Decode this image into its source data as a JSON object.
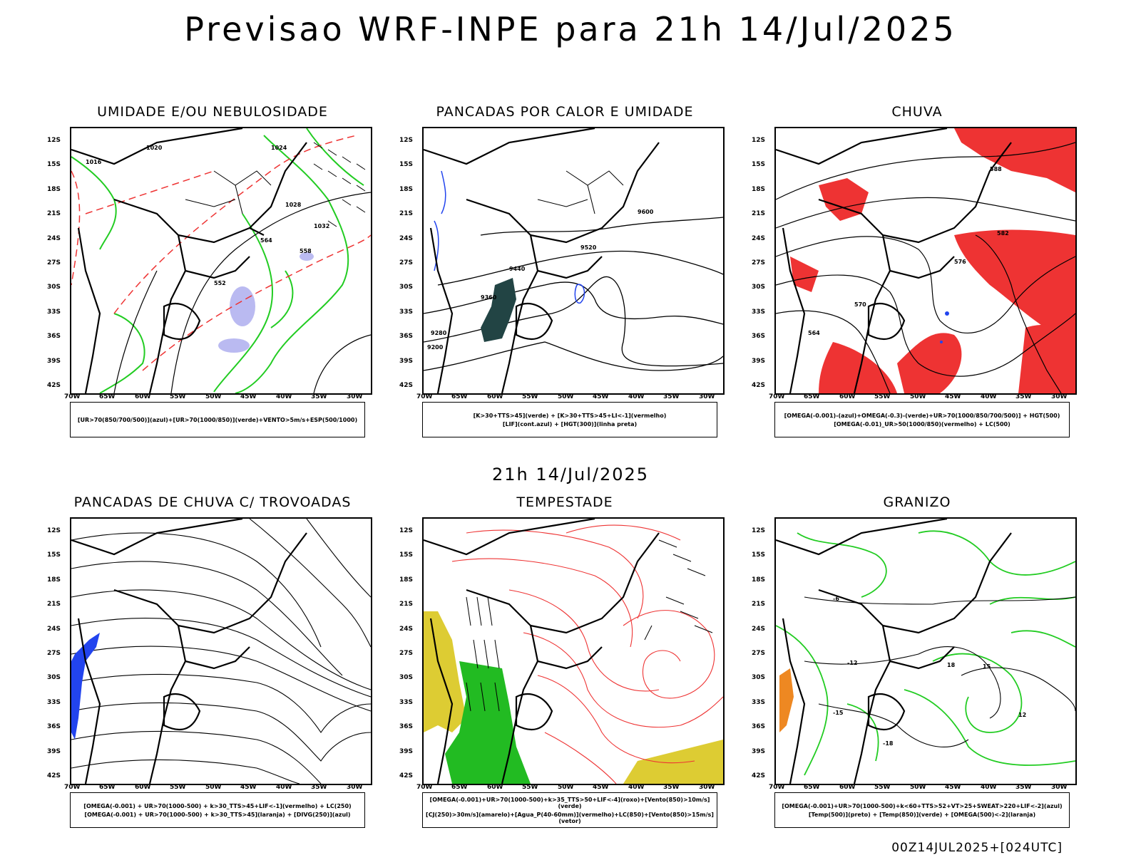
{
  "main_title": "Previsao WRF-INPE  para 21h 14/Jul/2025",
  "mid_title": "21h 14/Jul/2025",
  "footer": "00Z14JUL2025+[024UTC]",
  "lat_labels": [
    "12S",
    "15S",
    "18S",
    "21S",
    "24S",
    "27S",
    "30S",
    "33S",
    "36S",
    "39S",
    "42S"
  ],
  "lon_labels": [
    "70W",
    "65W",
    "60W",
    "55W",
    "50W",
    "45W",
    "40W",
    "35W",
    "30W"
  ],
  "colors": {
    "green": "#22cc22",
    "red": "#ee3333",
    "blue": "#2244ee",
    "lavender": "#aaaaee",
    "teal": "#224444",
    "yellow": "#ddcc33",
    "orange": "#ee8822"
  },
  "panels": [
    {
      "title": "UMIDADE E/OU NEBULOSIDADE",
      "legend": [
        "[UR>70(850/700/500)](azul)+[UR>70(1000/850)](verde)+VENTO>5m/s+ESP(500/1000)"
      ]
    },
    {
      "title": "PANCADAS POR CALOR E UMIDADE",
      "legend": [
        "[K>30+TTS>45](verde) + [K>30+TTS>45+LI<-1](vermelho)",
        "[LIF](cont.azul) + [HGT(300)](linha preta)"
      ]
    },
    {
      "title": "CHUVA",
      "legend": [
        "[OMEGA(-0.001)-(azul)+OMEGA(-0.3)-(verde)+UR>70(1000/850/700/500)] + HGT(500)",
        "[OMEGA(-0.01)_UR>50(1000/850)(vermelho) + LC(500)"
      ]
    },
    {
      "title": "PANCADAS DE CHUVA C/ TROVOADAS",
      "legend": [
        "[OMEGA(-0.001) + UR>70(1000-500) + k>30_TTS>45+LIF<-1](vermelho) + LC(250)",
        "[OMEGA(-0.001) + UR>70(1000-500) + k>30_TTS>45](laranja) + [DIVG(250)](azul)"
      ]
    },
    {
      "title": "TEMPESTADE",
      "legend": [
        "[OMEGA(-0.001)+UR>70(1000-500)+k>35_TTS>50+LIF<-4](roxo)+[Vento(850)>10m/s](verde)",
        "[CJ(250)>30m/s](amarelo)+[Agua_P(40-60mm)](vermelho)+LC(850)+[Vento(850)>15m/s](vetor)"
      ]
    },
    {
      "title": "GRANIZO",
      "legend": [
        "[OMEGA(-0.001)+UR>70(1000-500)+k<60+TTS>52+VT>25+SWEAT>220+LIF<-2](azul)",
        "[Temp(500)](preto) + [Temp(850)](verde) + [OMEGA(500)<-2](laranja)"
      ]
    }
  ],
  "contour_labels": {
    "p1": [
      "1016",
      "1020",
      "1024",
      "1028",
      "1032",
      "564",
      "558",
      "552"
    ],
    "p2": [
      "9600",
      "9520",
      "9440",
      "9360",
      "9280",
      "9200"
    ],
    "p3": [
      "588",
      "582",
      "576",
      "570",
      "564"
    ],
    "p6": [
      "-6",
      "-12",
      "-15",
      "-18",
      "18",
      "15",
      "12"
    ]
  }
}
